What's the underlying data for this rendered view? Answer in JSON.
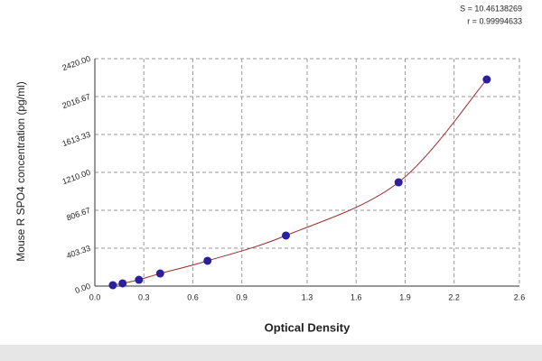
{
  "chart_data": {
    "type": "scatter",
    "x_label": "Optical Density",
    "y_label": "Mouse R SPO4 concentration (pg/ml)",
    "annotations": [
      "S = 10.46138269",
      "r = 0.99994633"
    ],
    "series": [
      {
        "color": "#2b1f9e",
        "x": [
          0.11,
          0.17,
          0.27,
          0.4,
          0.69,
          1.17,
          1.86,
          2.4
        ],
        "values": [
          10,
          29,
          67,
          134,
          269,
          538,
          1104,
          2199
        ]
      }
    ],
    "curve_color": "#9b2a2a",
    "xlim": [
      0,
      2.6
    ],
    "xticks": [
      {
        "value": 0,
        "label": "0.0"
      },
      0.3,
      0.6,
      0.9,
      1.3,
      1.6,
      1.9,
      2.2,
      2.6
    ],
    "ylim": [
      0,
      2420
    ],
    "yticks": [
      {
        "value": 0,
        "label": "0.00"
      },
      403.33,
      806.67,
      {
        "value": 1210,
        "label": "1210.00"
      },
      1613.33,
      2016.67,
      {
        "value": 2420,
        "label": "2420.00"
      }
    ],
    "grid": true
  }
}
